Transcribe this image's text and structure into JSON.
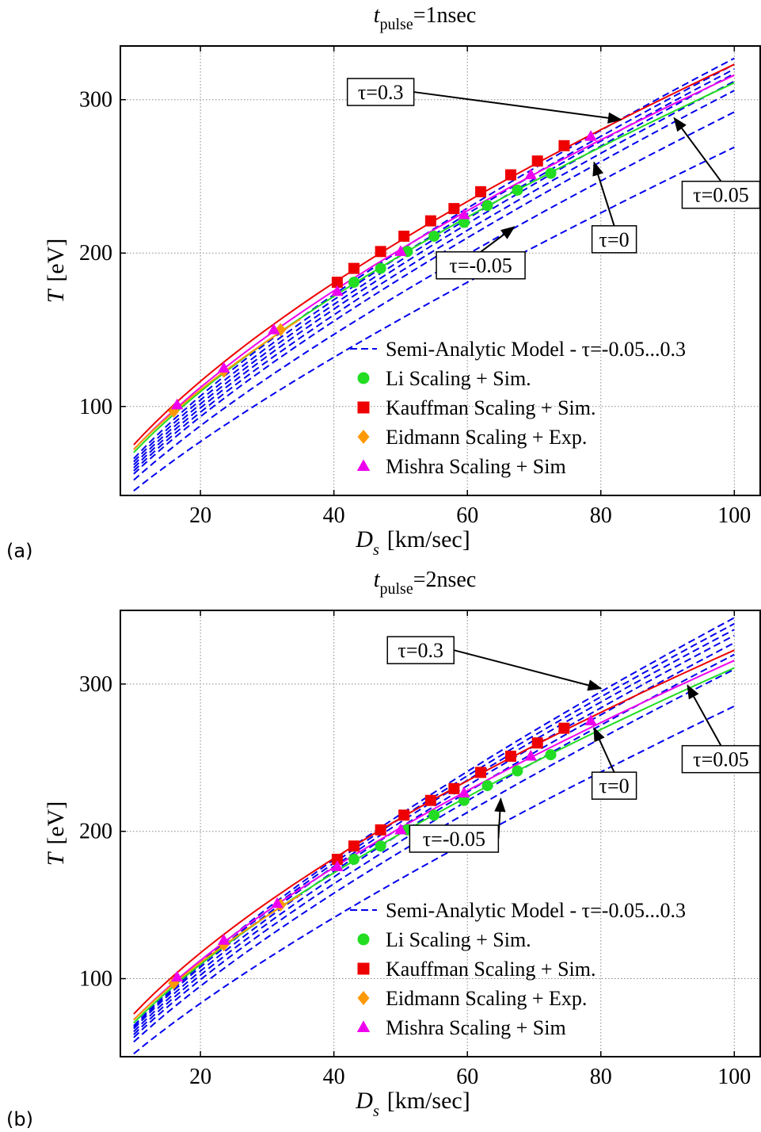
{
  "chart_data": [
    {
      "type": "line",
      "panel_label": "(a)",
      "title": {
        "var": "t",
        "sub": "pulse",
        "rest": "=1nsec"
      },
      "xlabel": {
        "var": "D",
        "sub": "s",
        "unit": "[km/sec]"
      },
      "ylabel": {
        "var": "T",
        "unit": "[eV]"
      },
      "xlim": [
        8,
        104
      ],
      "ylim": [
        42,
        335
      ],
      "xticks": [
        20,
        40,
        60,
        80,
        100
      ],
      "yticks": [
        100,
        200,
        300
      ],
      "grid": true,
      "legend_position": "lower-right",
      "legend": [
        {
          "label": "Semi-Analytic Model - τ=-0.05...0.3",
          "marker": "dash",
          "color": "#0000ee"
        },
        {
          "label": "Li Scaling + Sim.",
          "marker": "circle",
          "color": "#22dd22"
        },
        {
          "label": "Kauffman Scaling + Sim.",
          "marker": "square",
          "color": "#ee0000"
        },
        {
          "label": "Eidmann Scaling + Exp.",
          "marker": "diamond",
          "color": "#ff9900"
        },
        {
          "label": "Mishra Scaling + Sim",
          "marker": "triangle",
          "color": "#ee00ee"
        }
      ],
      "model_series": [
        {
          "tau": -0.05,
          "color": "#0000ee",
          "dashed": true,
          "x": [
            10,
            100
          ],
          "y": [
            45,
            269
          ]
        },
        {
          "tau": 0,
          "color": "#0000ee",
          "dashed": true,
          "x": [
            10,
            100
          ],
          "y": [
            52,
            292
          ]
        },
        {
          "tau": 0.05,
          "color": "#0000ee",
          "dashed": true,
          "x": [
            10,
            100
          ],
          "y": [
            56,
            306
          ]
        },
        {
          "color": "#0000ee",
          "dashed": true,
          "x": [
            10,
            100
          ],
          "y": [
            58,
            312
          ]
        },
        {
          "color": "#0000ee",
          "dashed": true,
          "x": [
            10,
            100
          ],
          "y": [
            60,
            317
          ]
        },
        {
          "color": "#0000ee",
          "dashed": true,
          "x": [
            10,
            100
          ],
          "y": [
            62,
            320
          ]
        },
        {
          "color": "#0000ee",
          "dashed": true,
          "x": [
            10,
            100
          ],
          "y": [
            64,
            323
          ]
        },
        {
          "tau": 0.3,
          "color": "#0000ee",
          "dashed": true,
          "x": [
            10,
            100
          ],
          "y": [
            66,
            327
          ]
        }
      ],
      "fit_series": [
        {
          "color": "#22dd22",
          "x": [
            10,
            100
          ],
          "y": [
            70,
            311
          ]
        },
        {
          "color": "#ee00ee",
          "x": [
            10,
            100
          ],
          "y": [
            72,
            316
          ]
        },
        {
          "color": "#ff9900",
          "x": [
            10,
            35
          ],
          "y": [
            72,
            157
          ]
        },
        {
          "color": "#ee0000",
          "x": [
            10,
            100
          ],
          "y": [
            75,
            323
          ]
        }
      ],
      "points": [
        {
          "marker": "circle",
          "color": "#22dd22",
          "x": [
            43,
            47,
            51,
            55,
            59.5,
            63,
            67.5,
            72.5
          ],
          "y": [
            181,
            190,
            201,
            211,
            220,
            231,
            241,
            252
          ]
        },
        {
          "marker": "square",
          "color": "#ee0000",
          "x": [
            40.5,
            43,
            47,
            50.5,
            54.5,
            58,
            62,
            66.5,
            70.5,
            74.5
          ],
          "y": [
            181,
            190,
            201,
            211,
            221,
            229,
            240,
            251,
            260,
            270
          ]
        },
        {
          "marker": "diamond",
          "color": "#ff9900",
          "x": [
            16,
            23.5,
            32
          ],
          "y": [
            97,
            123,
            150
          ]
        },
        {
          "marker": "triangle",
          "color": "#ee00ee",
          "x": [
            16.5,
            23.5,
            31,
            40.5,
            50,
            59.5,
            69.5,
            78.5
          ],
          "y": [
            101,
            125,
            150,
            175,
            201,
            225,
            251,
            276
          ]
        }
      ],
      "annotations": [
        {
          "text": "τ=0.3",
          "text_x": 47,
          "text_y": 305,
          "arrow_x": 83,
          "arrow_y": 287
        },
        {
          "text": "τ=0.05",
          "text_x": 98,
          "text_y": 238,
          "arrow_x": 91,
          "arrow_y": 288
        },
        {
          "text": "τ=0",
          "text_x": 82,
          "text_y": 209,
          "arrow_x": 79,
          "arrow_y": 259
        },
        {
          "text": "τ=-0.05",
          "text_x": 62,
          "text_y": 192,
          "arrow_x": 67,
          "arrow_y": 217
        }
      ]
    },
    {
      "type": "line",
      "panel_label": "(b)",
      "title": {
        "var": "t",
        "sub": "pulse",
        "rest": "=2nsec"
      },
      "xlabel": {
        "var": "D",
        "sub": "s",
        "unit": "[km/sec]"
      },
      "ylabel": {
        "var": "T",
        "unit": "[eV]"
      },
      "xlim": [
        8,
        104
      ],
      "ylim": [
        47,
        350
      ],
      "xticks": [
        20,
        40,
        60,
        80,
        100
      ],
      "yticks": [
        100,
        200,
        300
      ],
      "grid": true,
      "legend_position": "lower-right",
      "legend": [
        {
          "label": "Semi-Analytic Model - τ=-0.05...0.3",
          "marker": "dash",
          "color": "#0000ee"
        },
        {
          "label": "Li Scaling + Sim.",
          "marker": "circle",
          "color": "#22dd22"
        },
        {
          "label": "Kauffman Scaling + Sim.",
          "marker": "square",
          "color": "#ee0000"
        },
        {
          "label": "Eidmann Scaling + Exp.",
          "marker": "diamond",
          "color": "#ff9900"
        },
        {
          "label": "Mishra Scaling + Sim",
          "marker": "triangle",
          "color": "#ee00ee"
        }
      ],
      "model_series": [
        {
          "tau": -0.05,
          "color": "#0000ee",
          "dashed": true,
          "x": [
            10,
            100
          ],
          "y": [
            49,
            285
          ]
        },
        {
          "tau": 0,
          "color": "#0000ee",
          "dashed": true,
          "x": [
            10,
            100
          ],
          "y": [
            57,
            310
          ]
        },
        {
          "tau": 0.05,
          "color": "#0000ee",
          "dashed": true,
          "x": [
            10,
            100
          ],
          "y": [
            60,
            320
          ]
        },
        {
          "color": "#0000ee",
          "dashed": true,
          "x": [
            10,
            100
          ],
          "y": [
            62,
            328
          ]
        },
        {
          "color": "#0000ee",
          "dashed": true,
          "x": [
            10,
            100
          ],
          "y": [
            64,
            333
          ]
        },
        {
          "color": "#0000ee",
          "dashed": true,
          "x": [
            10,
            100
          ],
          "y": [
            66,
            337
          ]
        },
        {
          "color": "#0000ee",
          "dashed": true,
          "x": [
            10,
            100
          ],
          "y": [
            67,
            341
          ]
        },
        {
          "tau": 0.3,
          "color": "#0000ee",
          "dashed": true,
          "x": [
            10,
            100
          ],
          "y": [
            68,
            345
          ]
        }
      ],
      "fit_series": [
        {
          "color": "#22dd22",
          "x": [
            10,
            100
          ],
          "y": [
            70,
            311
          ]
        },
        {
          "color": "#ee00ee",
          "x": [
            10,
            100
          ],
          "y": [
            72,
            316
          ]
        },
        {
          "color": "#ff9900",
          "x": [
            10,
            35
          ],
          "y": [
            72,
            157
          ]
        },
        {
          "color": "#ee0000",
          "x": [
            10,
            100
          ],
          "y": [
            76,
            323
          ]
        }
      ],
      "points": [
        {
          "marker": "circle",
          "color": "#22dd22",
          "x": [
            43,
            47,
            51,
            55,
            59.5,
            63,
            67.5,
            72.5
          ],
          "y": [
            181,
            190,
            201,
            211,
            221,
            231,
            241,
            252
          ]
        },
        {
          "marker": "square",
          "color": "#ee0000",
          "x": [
            40.5,
            43,
            47,
            50.5,
            54.5,
            58,
            62,
            66.5,
            70.5,
            74.5
          ],
          "y": [
            181,
            190,
            201,
            211,
            221,
            229,
            240,
            251,
            260,
            270
          ]
        },
        {
          "marker": "diamond",
          "color": "#ff9900",
          "x": [
            16,
            23.5,
            32
          ],
          "y": [
            97,
            123,
            150
          ]
        },
        {
          "marker": "triangle",
          "color": "#ee00ee",
          "x": [
            16.5,
            23.5,
            31.5,
            40.5,
            50,
            59.5,
            69.5,
            78.5
          ],
          "y": [
            101,
            126,
            151,
            176,
            201,
            226,
            251,
            275
          ]
        }
      ],
      "annotations": [
        {
          "text": "τ=0.3",
          "text_x": 53,
          "text_y": 323,
          "arrow_x": 80,
          "arrow_y": 297
        },
        {
          "text": "τ=0.05",
          "text_x": 98,
          "text_y": 249,
          "arrow_x": 93,
          "arrow_y": 299
        },
        {
          "text": "τ=0",
          "text_x": 82,
          "text_y": 231,
          "arrow_x": 79,
          "arrow_y": 270
        },
        {
          "text": "τ=-0.05",
          "text_x": 58,
          "text_y": 195,
          "arrow_x": 65,
          "arrow_y": 222
        }
      ]
    }
  ]
}
